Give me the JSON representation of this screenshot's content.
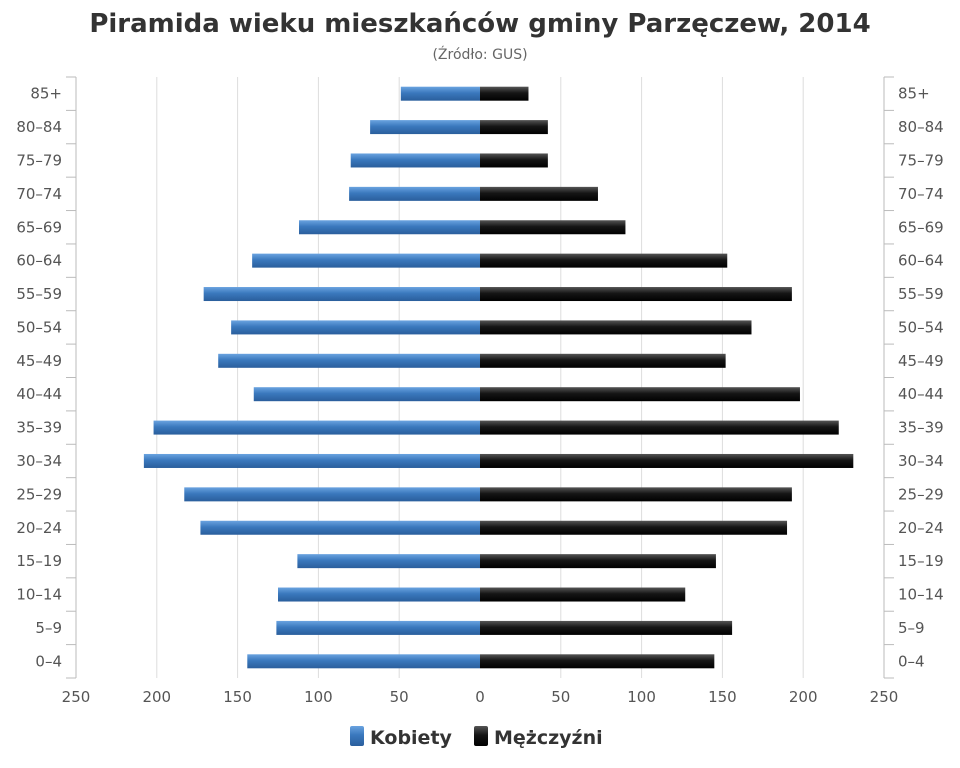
{
  "colors": {
    "female": "#3a78bd",
    "male": "#111111",
    "grid": "#dddddd",
    "axis": "#bbbbbb"
  },
  "chart_data": {
    "type": "bar",
    "orientation": "horizontal",
    "title": "Piramida wieku mieszkańców gminy Parzęczew, 2014",
    "subtitle": "(Źródło: GUS)",
    "categories": [
      "0-4",
      "5-9",
      "10-14",
      "15-19",
      "20-24",
      "25-29",
      "30-34",
      "35-39",
      "40-44",
      "45-49",
      "50-54",
      "55-59",
      "60-64",
      "65-69",
      "70-74",
      "75-79",
      "80-84",
      "85+"
    ],
    "series": [
      {
        "name": "Kobiety",
        "color": "#3a78bd",
        "side": "left",
        "values": [
          144,
          126,
          125,
          113,
          173,
          183,
          208,
          202,
          140,
          162,
          154,
          171,
          141,
          112,
          81,
          80,
          68,
          49
        ]
      },
      {
        "name": "Mężczyźni",
        "color": "#111111",
        "side": "right",
        "values": [
          145,
          156,
          127,
          146,
          190,
          193,
          231,
          222,
          198,
          152,
          168,
          193,
          153,
          90,
          73,
          42,
          42,
          30
        ]
      }
    ],
    "xlim": [
      -250,
      250
    ],
    "x_ticks": [
      -250,
      -200,
      -150,
      -100,
      -50,
      0,
      50,
      100,
      150,
      200,
      250
    ],
    "x_tick_labels": [
      "250",
      "200",
      "150",
      "100",
      "50",
      "0",
      "50",
      "100",
      "150",
      "200",
      "250"
    ],
    "grid": true,
    "legend_position": "bottom"
  }
}
